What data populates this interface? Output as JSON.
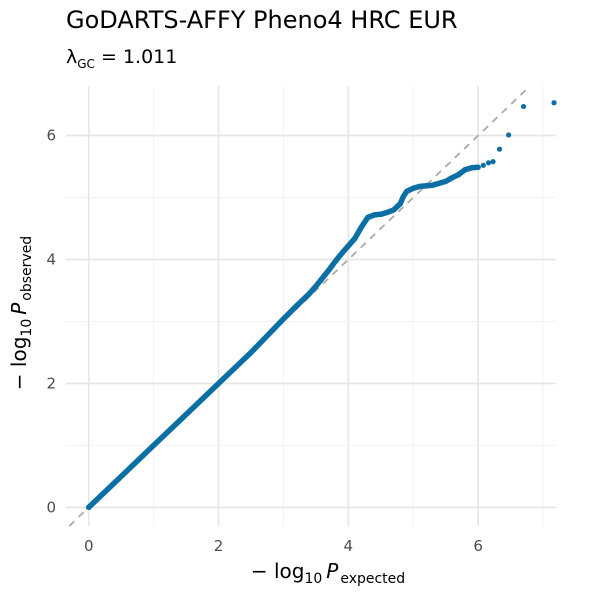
{
  "chart_data": {
    "type": "scatter",
    "title": "GoDARTS-AFFY Pheno4 HRC EUR",
    "subtitle": {
      "lambda_symbol": "λ",
      "lambda_sub": "GC",
      "equals": " = ",
      "value": "1.011"
    },
    "xlabel": {
      "prefix": "− log",
      "base": "10",
      "variable": "P",
      "sub": "expected"
    },
    "ylabel": {
      "prefix": "− log",
      "base": "10",
      "variable": "P",
      "sub": "observed"
    },
    "xlim": [
      -0.35,
      7.2
    ],
    "ylim": [
      -0.3,
      6.8
    ],
    "x_ticks": [
      0,
      2,
      4,
      6
    ],
    "y_ticks": [
      0,
      2,
      4,
      6
    ],
    "grid": true,
    "reference_line": {
      "slope": 1,
      "intercept": 0,
      "style": "dashed",
      "color": "#aaaaaa"
    },
    "point_color": "#0b6fa4",
    "series": [
      {
        "points": [
          [
            0.0,
            0.0
          ],
          [
            0.5,
            0.5
          ],
          [
            1.0,
            1.0
          ],
          [
            1.5,
            1.5
          ],
          [
            2.0,
            2.0
          ],
          [
            2.5,
            2.5
          ],
          [
            3.0,
            3.04
          ],
          [
            3.2,
            3.25
          ],
          [
            3.4,
            3.45
          ],
          [
            3.5,
            3.57
          ],
          [
            3.6,
            3.7
          ],
          [
            3.7,
            3.83
          ],
          [
            3.8,
            3.97
          ],
          [
            3.9,
            4.1
          ],
          [
            4.0,
            4.22
          ],
          [
            4.1,
            4.34
          ],
          [
            4.2,
            4.52
          ],
          [
            4.3,
            4.68
          ],
          [
            4.4,
            4.72
          ],
          [
            4.5,
            4.73
          ],
          [
            4.6,
            4.76
          ],
          [
            4.7,
            4.8
          ],
          [
            4.8,
            4.9
          ],
          [
            4.85,
            5.02
          ],
          [
            4.9,
            5.1
          ],
          [
            5.0,
            5.15
          ],
          [
            5.1,
            5.18
          ],
          [
            5.3,
            5.2
          ],
          [
            5.5,
            5.26
          ],
          [
            5.6,
            5.32
          ],
          [
            5.7,
            5.37
          ],
          [
            5.8,
            5.45
          ],
          [
            5.9,
            5.48
          ],
          [
            6.0,
            5.49
          ],
          [
            6.08,
            5.52
          ],
          [
            6.16,
            5.56
          ],
          [
            6.23,
            5.58
          ],
          [
            6.33,
            5.78
          ],
          [
            6.47,
            6.01
          ],
          [
            6.7,
            6.47
          ],
          [
            7.17,
            6.53
          ]
        ]
      }
    ]
  }
}
